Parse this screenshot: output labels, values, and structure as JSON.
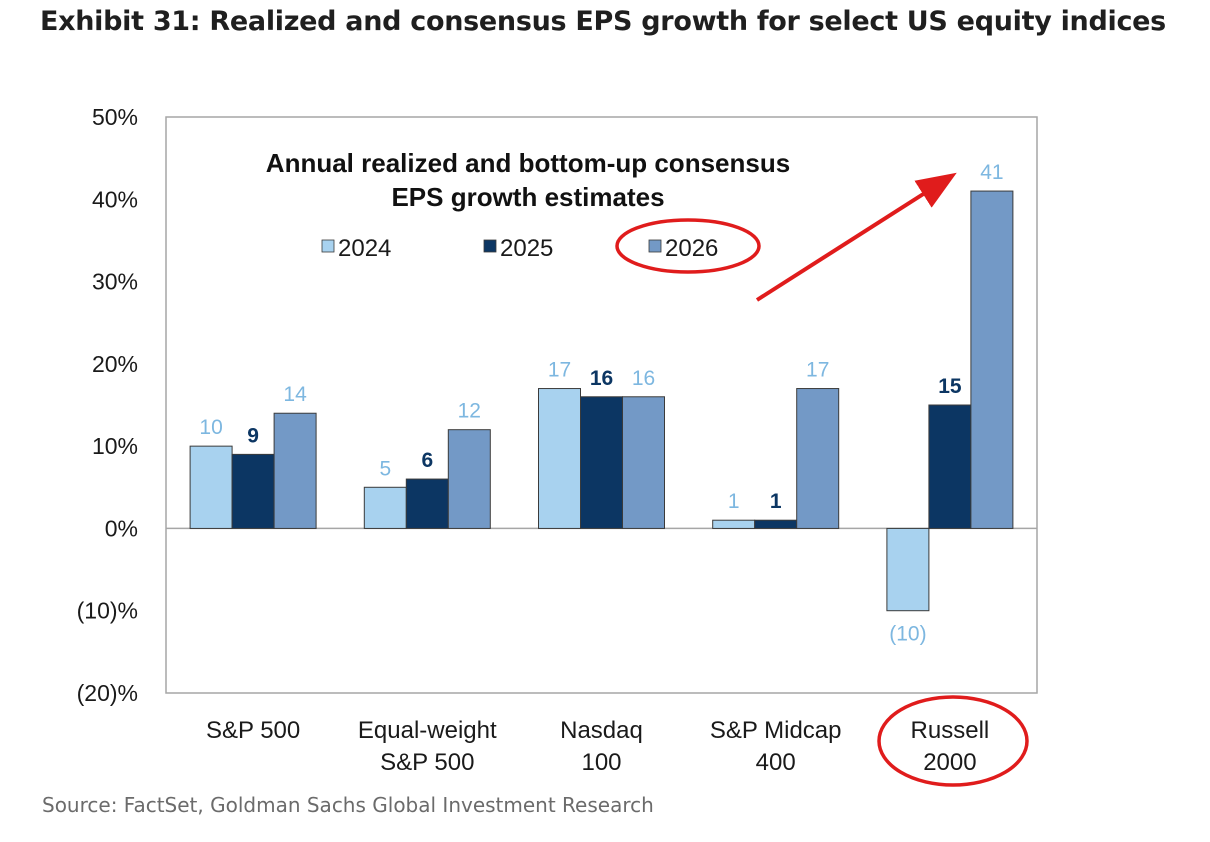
{
  "exhibit": {
    "title": "Exhibit 31: Realized and consensus EPS growth for select US equity indices",
    "source": "Source: FactSet, Goldman Sachs Global Investment Research"
  },
  "chart_data": {
    "type": "bar",
    "title": "Annual realized and bottom-up consensus EPS growth estimates",
    "title_lines": [
      "Annual realized and bottom-up consensus",
      "EPS growth estimates"
    ],
    "categories": [
      [
        "S&P 500"
      ],
      [
        "Equal-weight",
        "S&P 500"
      ],
      [
        "Nasdaq",
        "100"
      ],
      [
        "S&P Midcap",
        "400"
      ],
      [
        "Russell",
        "2000"
      ]
    ],
    "series": [
      {
        "name": "2024",
        "color": "#a8d2ef",
        "label_color": "#7db7e0",
        "label_bold": false,
        "values": [
          10,
          5,
          17,
          1,
          -10
        ],
        "labels": [
          "10",
          "5",
          "17",
          "1",
          "(10)"
        ]
      },
      {
        "name": "2025",
        "color": "#0c3663",
        "label_color": "#0c3663",
        "label_bold": true,
        "values": [
          9,
          6,
          16,
          1,
          15
        ],
        "labels": [
          "9",
          "6",
          "16",
          "1",
          "15"
        ]
      },
      {
        "name": "2026",
        "color": "#7399c6",
        "label_color": "#7db7e0",
        "label_bold": false,
        "values": [
          14,
          12,
          16,
          17,
          41
        ],
        "labels": [
          "14",
          "12",
          "16",
          "17",
          "41"
        ]
      }
    ],
    "ylim": [
      -20,
      50
    ],
    "yticks": [
      50,
      40,
      30,
      20,
      10,
      0,
      -10,
      -20
    ],
    "ytick_labels": [
      "50%",
      "40%",
      "30%",
      "20%",
      "10%",
      "0%",
      "(10)%",
      "(20)%"
    ],
    "xlabel": "",
    "ylabel": "",
    "legend": "top-center",
    "annotations": [
      {
        "type": "ellipse",
        "target": "legend-2026",
        "color": "#e01c1c"
      },
      {
        "type": "ellipse",
        "target": "category-Russell 2000",
        "color": "#e01c1c"
      },
      {
        "type": "arrow",
        "target": "bar-2026-Russell 2000",
        "color": "#e01c1c"
      }
    ]
  }
}
